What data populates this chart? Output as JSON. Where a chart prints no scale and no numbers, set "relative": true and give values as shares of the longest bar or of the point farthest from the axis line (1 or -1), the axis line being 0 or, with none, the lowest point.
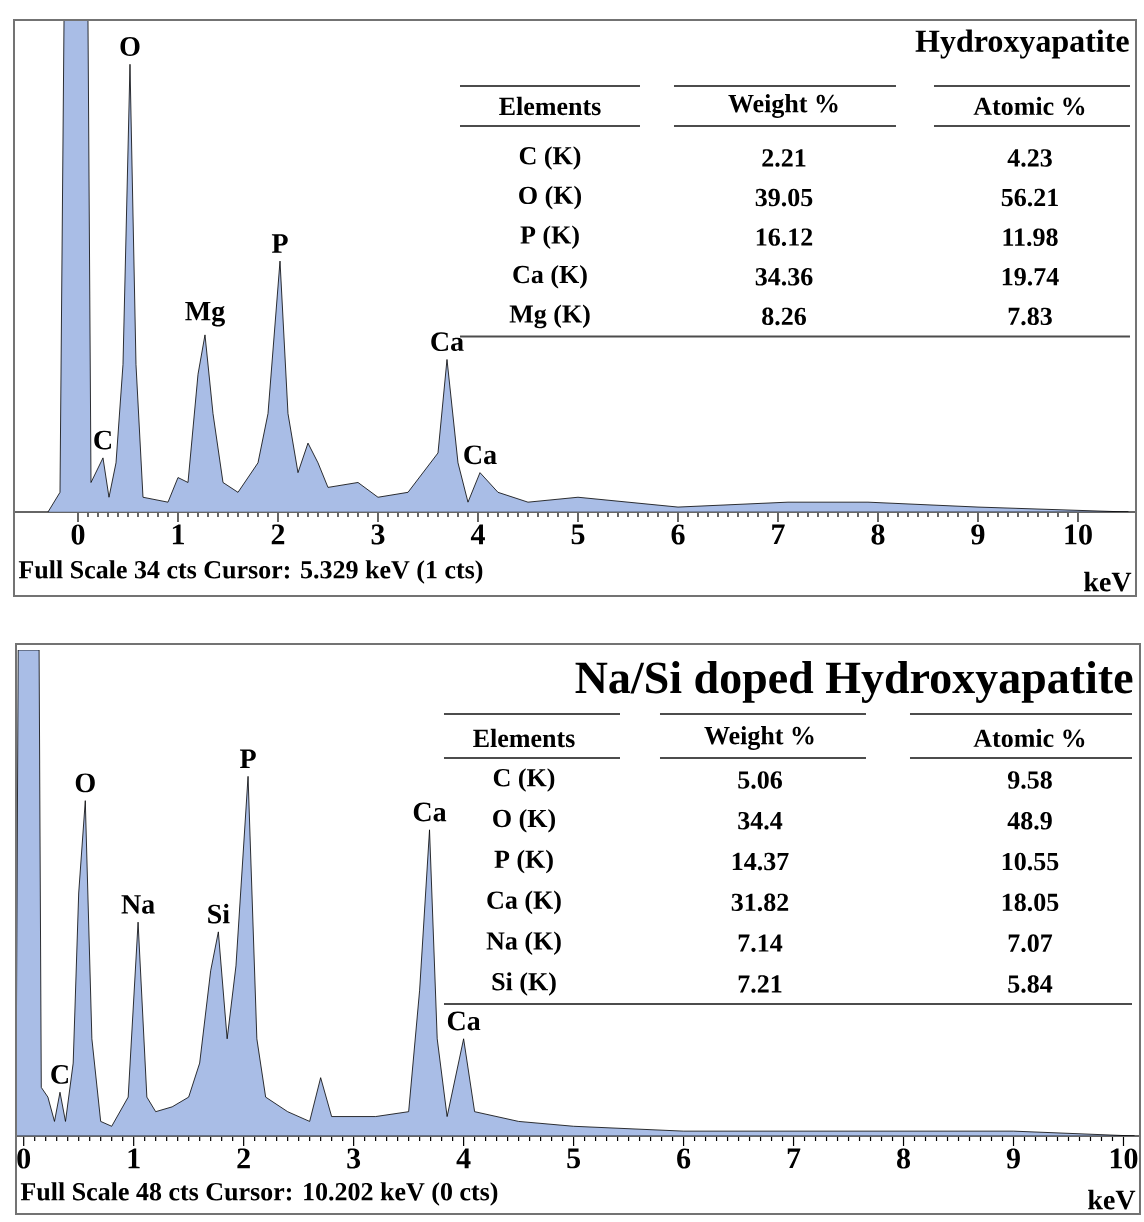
{
  "chart_data": [
    {
      "type": "area",
      "relative": true,
      "title": "Hydroxyapatite",
      "xlabel": "keV",
      "color": "#a9bde6",
      "xlim": [
        -0.64,
        10.58
      ],
      "xticks": [
        0,
        1,
        2,
        3,
        4,
        5,
        6,
        7,
        8,
        9,
        10
      ],
      "x": [
        -0.3,
        -0.18,
        -0.14,
        0.1,
        0.13,
        0.25,
        0.31,
        0.38,
        0.45,
        0.52,
        0.58,
        0.65,
        0.9,
        1.0,
        1.1,
        1.2,
        1.27,
        1.35,
        1.45,
        1.6,
        1.8,
        1.9,
        2.02,
        2.1,
        2.2,
        2.3,
        2.4,
        2.5,
        2.8,
        3.0,
        3.3,
        3.6,
        3.69,
        3.8,
        3.9,
        4.02,
        4.2,
        4.5,
        5.0,
        5.5,
        6.0,
        7.1,
        7.9,
        9.0,
        10.5
      ],
      "values": [
        0,
        0.04,
        1,
        1,
        0.06,
        0.11,
        0.03,
        0.1,
        0.3,
        0.91,
        0.3,
        0.03,
        0.02,
        0.07,
        0.06,
        0.28,
        0.36,
        0.2,
        0.06,
        0.04,
        0.1,
        0.2,
        0.51,
        0.2,
        0.08,
        0.14,
        0.1,
        0.05,
        0.06,
        0.03,
        0.04,
        0.12,
        0.31,
        0.1,
        0.02,
        0.08,
        0.04,
        0.02,
        0.03,
        0.02,
        0.01,
        0.02,
        0.02,
        0.01,
        0
      ],
      "annotations": [
        {
          "text": "C",
          "x": 0.25,
          "y": 0.11
        },
        {
          "text": "O",
          "x": 0.52,
          "y": 0.91
        },
        {
          "text": "Mg",
          "x": 1.27,
          "y": 0.36
        },
        {
          "text": "P",
          "x": 2.02,
          "y": 0.51
        },
        {
          "text": "Ca",
          "x": 3.69,
          "y": 0.31
        },
        {
          "text": "Ca",
          "x": 4.02,
          "y": 0.08
        },
        "Full Scale 34 cts  Cursor: 5.329 keV (1 cts)",
        "Elements",
        "Weight %",
        "Atomic %",
        "C (K)",
        "2.21",
        "4.23",
        "O (K)",
        "39.05",
        "56.21",
        "P (K)",
        "16.12",
        "11.98",
        "Ca (K)",
        "34.36",
        "19.74",
        "Mg (K)",
        "8.26",
        "7.83"
      ]
    },
    {
      "type": "area",
      "relative": true,
      "title": "Na/Si doped Hydroxyapatite",
      "xlabel": "keV",
      "color": "#a9bde6",
      "xlim": [
        -0.07,
        10.15
      ],
      "xticks": [
        0,
        1,
        2,
        3,
        4,
        5,
        6,
        7,
        8,
        9,
        10
      ],
      "x": [
        -0.07,
        -0.05,
        0.14,
        0.16,
        0.22,
        0.28,
        0.33,
        0.38,
        0.45,
        0.5,
        0.56,
        0.62,
        0.7,
        0.8,
        0.95,
        1.04,
        1.12,
        1.2,
        1.35,
        1.5,
        1.6,
        1.7,
        1.77,
        1.85,
        1.93,
        2.04,
        2.12,
        2.2,
        2.4,
        2.6,
        2.7,
        2.8,
        3.2,
        3.5,
        3.6,
        3.69,
        3.76,
        3.85,
        4.0,
        4.1,
        4.5,
        5.0,
        6.0,
        7.0,
        8.0,
        9.0,
        10.1
      ],
      "values": [
        0.05,
        1,
        1,
        0.1,
        0.08,
        0.03,
        0.09,
        0.03,
        0.15,
        0.5,
        0.69,
        0.2,
        0.03,
        0.02,
        0.08,
        0.44,
        0.08,
        0.05,
        0.06,
        0.08,
        0.15,
        0.34,
        0.42,
        0.2,
        0.35,
        0.74,
        0.2,
        0.08,
        0.05,
        0.03,
        0.12,
        0.04,
        0.04,
        0.05,
        0.3,
        0.63,
        0.2,
        0.04,
        0.2,
        0.05,
        0.03,
        0.02,
        0.01,
        0.01,
        0.01,
        0.01,
        0
      ],
      "annotations": [
        {
          "text": "C",
          "x": 0.33,
          "y": 0.09
        },
        {
          "text": "O",
          "x": 0.56,
          "y": 0.69
        },
        {
          "text": "Na",
          "x": 1.04,
          "y": 0.44
        },
        {
          "text": "Si",
          "x": 1.77,
          "y": 0.42
        },
        {
          "text": "P",
          "x": 2.04,
          "y": 0.74
        },
        {
          "text": "Ca",
          "x": 3.69,
          "y": 0.63
        },
        {
          "text": "Ca",
          "x": 4.0,
          "y": 0.2
        },
        "Full Scale 48 cts  Cursor: 10.202 keV (0 cts)",
        "Elements",
        "Weight %",
        "Atomic %",
        "C (K)",
        "5.06",
        "9.58",
        "O (K)",
        "34.4",
        "48.9",
        "P (K)",
        "14.37",
        "10.55",
        "Ca (K)",
        "31.82",
        "18.05",
        "Na (K)",
        "7.14",
        "7.07",
        "Si (K)",
        "7.21",
        "5.84"
      ]
    }
  ]
}
